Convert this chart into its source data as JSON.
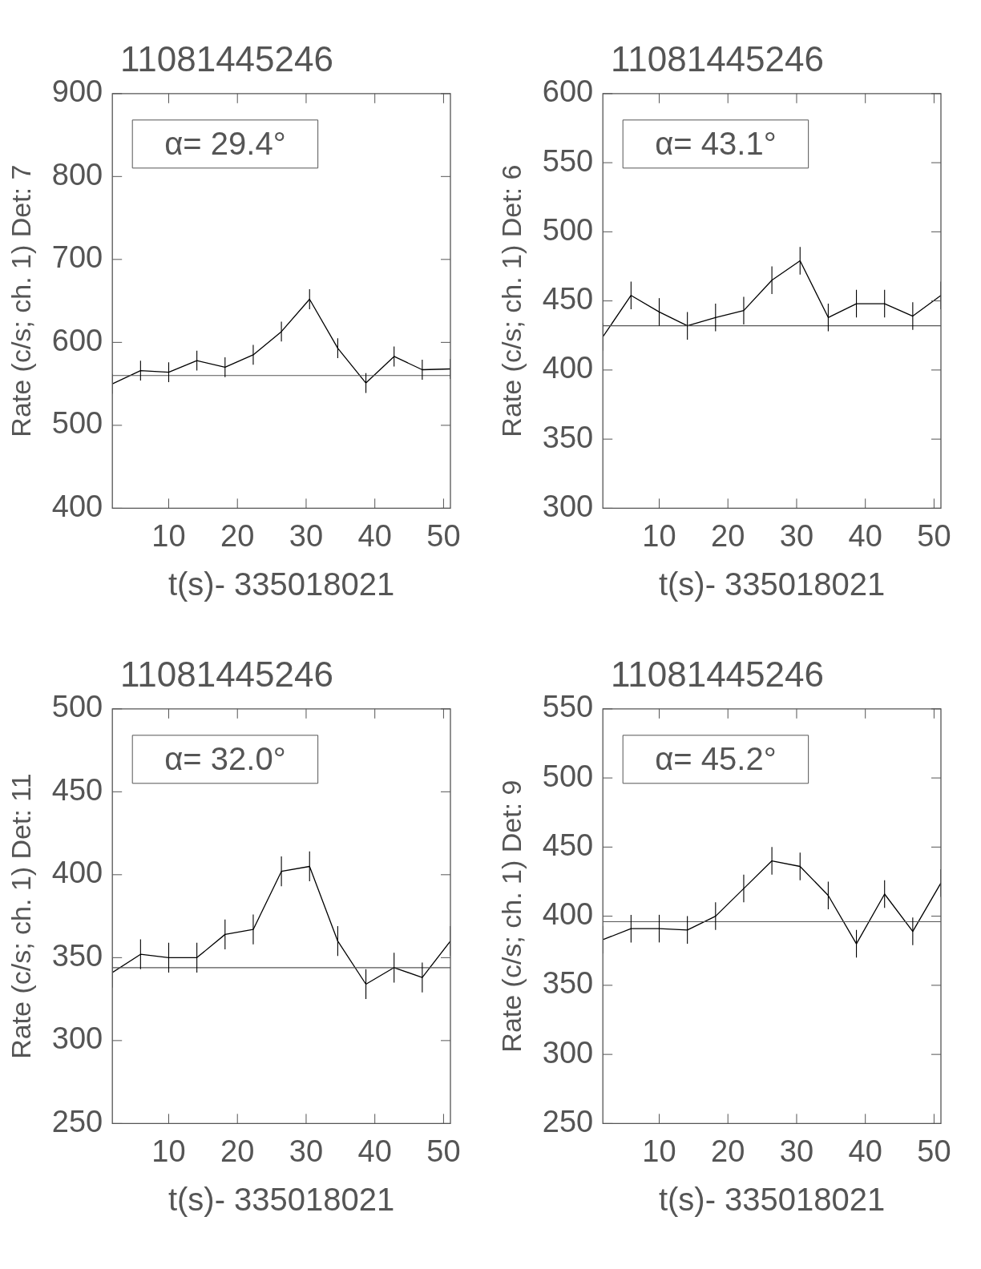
{
  "chart_data": [
    {
      "type": "line",
      "title": "11081445246",
      "xlabel": "t(s)- 335018021",
      "ylabel": "Rate (c/s; ch. 1) Det: 7",
      "annotations": [
        "α= 29.4°"
      ],
      "x": [
        1.8,
        5.9,
        10,
        14.1,
        18.2,
        22.3,
        26.4,
        30.5,
        34.6,
        38.7,
        42.8,
        46.9,
        51.0
      ],
      "xlim": [
        1.8,
        51.0
      ],
      "xticks": [
        10,
        20,
        30,
        40,
        50
      ],
      "ylim": [
        400,
        900
      ],
      "yticks": [
        400,
        500,
        600,
        700,
        800,
        900
      ],
      "grid": false,
      "legend": false,
      "marker": "none",
      "line_style": "solid",
      "series": [
        {
          "color": "#000000",
          "values": [
            550,
            566,
            564,
            578,
            570,
            585,
            613,
            652,
            593,
            551,
            583,
            567,
            568
          ],
          "errors": [
            12,
            12,
            12,
            12,
            12,
            12,
            12,
            12,
            12,
            12,
            12,
            12,
            12
          ]
        }
      ],
      "ref_lines": [
        {
          "axis": "y",
          "value": 560,
          "color": "#555555"
        }
      ]
    },
    {
      "type": "line",
      "title": "11081445246",
      "xlabel": "t(s)- 335018021",
      "ylabel": "Rate (c/s; ch. 1) Det: 6",
      "annotations": [
        "α= 43.1°"
      ],
      "x": [
        1.8,
        5.9,
        10,
        14.1,
        18.2,
        22.3,
        26.4,
        30.5,
        34.6,
        38.7,
        42.8,
        46.9,
        51.0
      ],
      "xlim": [
        1.8,
        51.0
      ],
      "xticks": [
        10,
        20,
        30,
        40,
        50
      ],
      "ylim": [
        300,
        600
      ],
      "yticks": [
        300,
        350,
        400,
        450,
        500,
        550,
        600
      ],
      "grid": false,
      "legend": false,
      "marker": "none",
      "line_style": "solid",
      "series": [
        {
          "color": "#000000",
          "values": [
            424,
            454,
            442,
            432,
            438,
            443,
            465,
            479,
            438,
            448,
            448,
            439,
            454
          ],
          "errors": [
            10,
            10,
            10,
            10,
            10,
            10,
            10,
            10,
            10,
            10,
            10,
            10,
            10
          ]
        }
      ],
      "ref_lines": [
        {
          "axis": "y",
          "value": 432,
          "color": "#555555"
        }
      ]
    },
    {
      "type": "line",
      "title": "11081445246",
      "xlabel": "t(s)- 335018021",
      "ylabel": "Rate (c/s; ch. 1) Det: 11",
      "annotations": [
        "α= 32.0°"
      ],
      "x": [
        1.8,
        5.9,
        10,
        14.1,
        18.2,
        22.3,
        26.4,
        30.5,
        34.6,
        38.7,
        42.8,
        46.9,
        51.0
      ],
      "xlim": [
        1.8,
        51.0
      ],
      "xticks": [
        10,
        20,
        30,
        40,
        50
      ],
      "ylim": [
        250,
        500
      ],
      "yticks": [
        250,
        300,
        350,
        400,
        450,
        500
      ],
      "grid": false,
      "legend": false,
      "marker": "none",
      "line_style": "solid",
      "series": [
        {
          "color": "#000000",
          "values": [
            341,
            352,
            350,
            350,
            364,
            367,
            402,
            405,
            360,
            334,
            344,
            338,
            360
          ],
          "errors": [
            9,
            9,
            9,
            9,
            9,
            9,
            9,
            9,
            9,
            9,
            9,
            9,
            9
          ]
        }
      ],
      "ref_lines": [
        {
          "axis": "y",
          "value": 344,
          "color": "#555555"
        }
      ]
    },
    {
      "type": "line",
      "title": "11081445246",
      "xlabel": "t(s)- 335018021",
      "ylabel": "Rate (c/s; ch. 1) Det: 9",
      "annotations": [
        "α= 45.2°"
      ],
      "x": [
        1.8,
        5.9,
        10,
        14.1,
        18.2,
        22.3,
        26.4,
        30.5,
        34.6,
        38.7,
        42.8,
        46.9,
        51.0
      ],
      "xlim": [
        1.8,
        51.0
      ],
      "xticks": [
        10,
        20,
        30,
        40,
        50
      ],
      "ylim": [
        250,
        550
      ],
      "yticks": [
        250,
        300,
        350,
        400,
        450,
        500,
        550
      ],
      "grid": false,
      "legend": false,
      "marker": "none",
      "line_style": "solid",
      "series": [
        {
          "color": "#000000",
          "values": [
            383,
            391,
            391,
            390,
            400,
            420,
            440,
            436,
            415,
            380,
            416,
            389,
            424
          ],
          "errors": [
            10,
            10,
            10,
            10,
            10,
            10,
            10,
            10,
            10,
            10,
            10,
            10,
            10
          ]
        }
      ],
      "ref_lines": [
        {
          "axis": "y",
          "value": 396,
          "color": "#555555"
        }
      ]
    }
  ]
}
